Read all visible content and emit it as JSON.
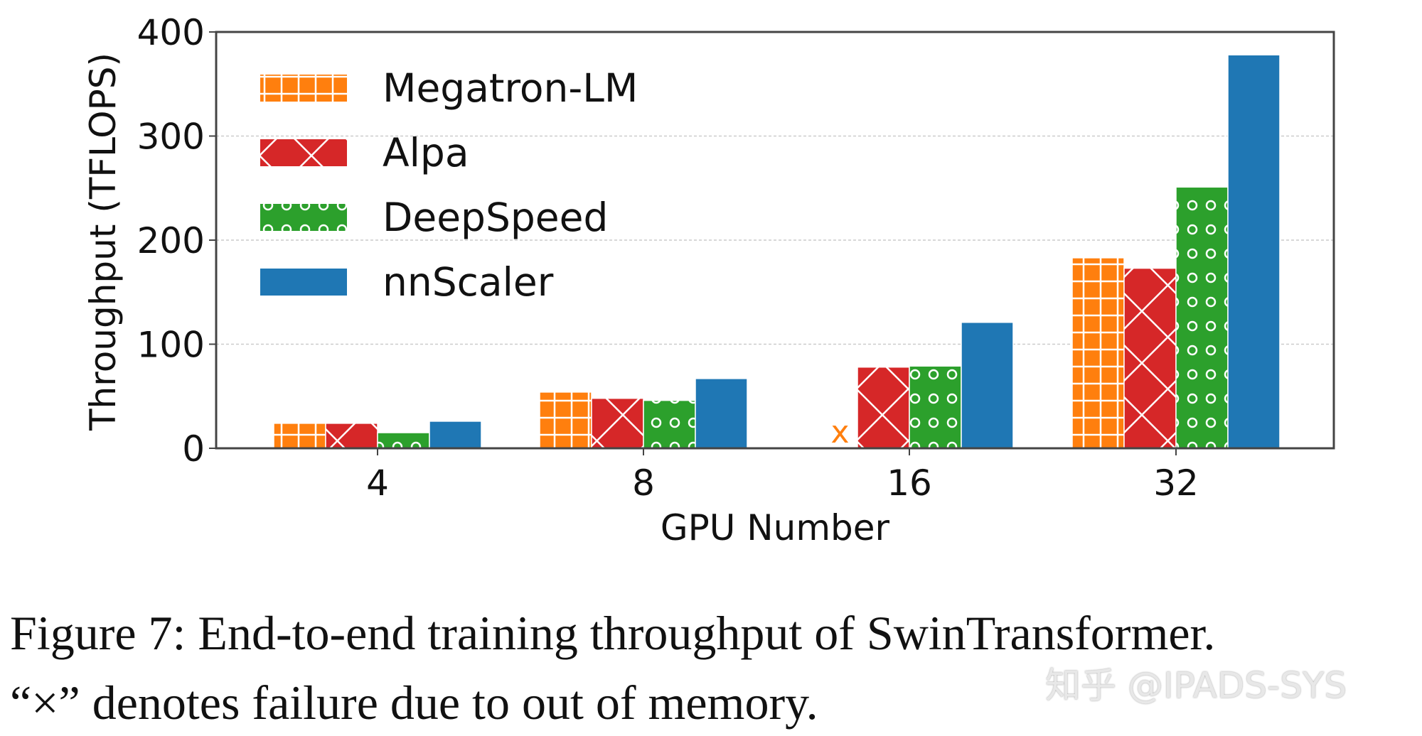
{
  "chart_data": {
    "type": "bar",
    "categories": [
      "4",
      "8",
      "16",
      "32"
    ],
    "xlabel": "GPU Number",
    "ylabel": "Throughput (TFLOPS)",
    "ylim": [
      0,
      400
    ],
    "yticks": [
      "0",
      "100",
      "200",
      "300",
      "400"
    ],
    "grid": true,
    "legend_position": "top-left",
    "oom_marker": "x",
    "series": [
      {
        "name": "Megatron-LM",
        "values": [
          24,
          54,
          null,
          183
        ],
        "color": "#ff7f0e",
        "hatch": "grid"
      },
      {
        "name": "Alpa",
        "values": [
          24,
          48,
          78,
          173
        ],
        "color": "#d62728",
        "hatch": "cross"
      },
      {
        "name": "DeepSpeed",
        "values": [
          15,
          46,
          79,
          251
        ],
        "color": "#2ca02c",
        "hatch": "circles"
      },
      {
        "name": "nnScaler",
        "values": [
          26,
          67,
          121,
          378
        ],
        "color": "#1f77b4",
        "hatch": "none"
      }
    ]
  },
  "caption": {
    "line1": "Figure 7: End-to-end training throughput of SwinTransformer.",
    "line2": "“×” denotes failure due to out of memory."
  },
  "watermark": "知乎 @IPADS-SYS"
}
